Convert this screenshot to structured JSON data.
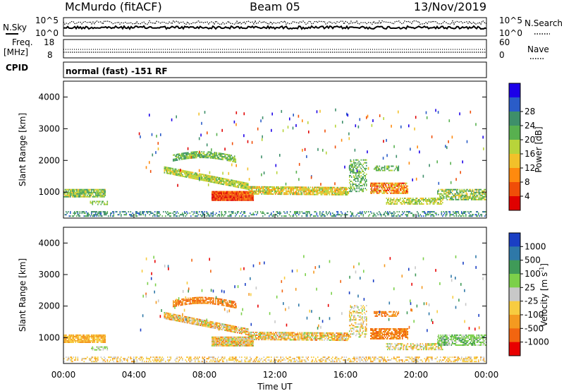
{
  "header": {
    "station": "McMurdo (fitACF)",
    "beam": "Beam 05",
    "date": "13/Nov/2019"
  },
  "top_panels": {
    "nsky_label": "N.Sky",
    "nsearch_label": "N.Search",
    "nsky_ticks": [
      "10^5",
      "10^0"
    ],
    "nsearch_ticks": [
      "10^5",
      "10^0"
    ],
    "freq_label_1": "Freq.",
    "freq_label_2": "[MHz]",
    "freq_ticks": [
      "18",
      "8"
    ],
    "nave_label": "Nave",
    "nave_ticks": [
      "60",
      "0"
    ],
    "cpid_label": "CPID",
    "cpid_text": "normal (fast) -151 RF"
  },
  "chart_data": [
    {
      "type": "heatmap",
      "quantity": "power",
      "ylabel": "Slant Range [km]",
      "xlabel": "",
      "ylim": [
        180,
        4500
      ],
      "yticks": [
        1000,
        2000,
        3000,
        4000
      ],
      "xticks": [
        "00:00",
        "04:00",
        "08:00",
        "12:00",
        "16:00",
        "20:00",
        "00:00"
      ],
      "colorbar_label": "Power [dB]",
      "colorbar_ticks": [
        "4",
        "8",
        "12",
        "16",
        "20",
        "24",
        "28"
      ],
      "colorbar_colors": [
        "#1c00e8",
        "#2a5cc8",
        "#3e8f6a",
        "#58b04f",
        "#b8d43a",
        "#f2c12a",
        "#ff8a0e",
        "#f04e08",
        "#e00000"
      ]
    },
    {
      "type": "heatmap",
      "quantity": "velocity",
      "ylabel": "Slant Range [km]",
      "xlabel": "Time UT",
      "ylim": [
        180,
        4500
      ],
      "yticks": [
        1000,
        2000,
        3000,
        4000
      ],
      "xticks": [
        "00:00",
        "04:00",
        "08:00",
        "12:00",
        "16:00",
        "20:00",
        "00:00"
      ],
      "colorbar_label": "Velocity [m s",
      "colorbar_label_sup": "-1",
      "colorbar_label_end": "]",
      "colorbar_ticks": [
        "1000",
        "500",
        "100",
        "25",
        "-25",
        "-100",
        "-500",
        "-1000"
      ],
      "colorbar_colors": [
        "#1a3fc4",
        "#2e78a8",
        "#3f9a58",
        "#7cd04a",
        "#c8c8c8",
        "#f7cc40",
        "#f49a20",
        "#f26510",
        "#e80000"
      ]
    }
  ]
}
